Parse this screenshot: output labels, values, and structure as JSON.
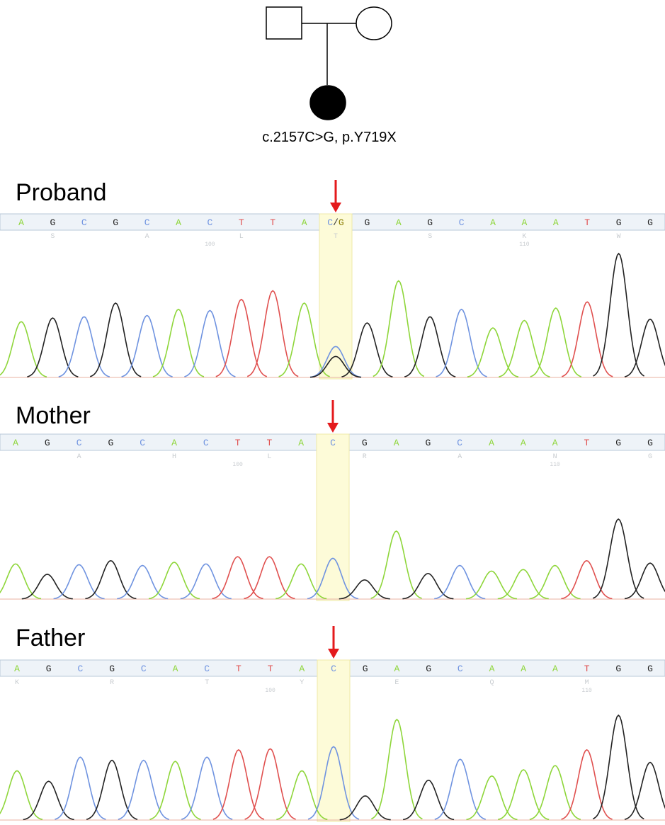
{
  "pedigree": {
    "label": "c.2157C>G, p.Y719X"
  },
  "base_colors": {
    "A": "#8ed63a",
    "C": "#6f93e0",
    "G": "#222222",
    "T": "#e0504f"
  },
  "panels": [
    {
      "title": "Proband",
      "highlight_index": 10,
      "bases": [
        "A",
        "G",
        "C",
        "G",
        "C",
        "A",
        "C",
        "T",
        "T",
        "A",
        "C/G",
        "G",
        "A",
        "G",
        "C",
        "A",
        "A",
        "A",
        "T",
        "G",
        "G"
      ],
      "amino_acids": [
        null,
        "S",
        null,
        null,
        "A",
        null,
        null,
        "L",
        null,
        null,
        "T",
        null,
        null,
        "S",
        null,
        null,
        "K",
        null,
        null,
        "W",
        null
      ],
      "positions": [
        null,
        null,
        null,
        null,
        null,
        null,
        100,
        null,
        null,
        null,
        null,
        null,
        null,
        null,
        null,
        null,
        110,
        null,
        null,
        null,
        null
      ],
      "peaks": [
        {
          "A": 0.45
        },
        {
          "G": 0.48
        },
        {
          "C": 0.49
        },
        {
          "G": 0.6
        },
        {
          "C": 0.5
        },
        {
          "A": 0.55
        },
        {
          "C": 0.54
        },
        {
          "T": 0.63
        },
        {
          "T": 0.7
        },
        {
          "A": 0.6
        },
        {
          "C": 0.25,
          "G": 0.17
        },
        {
          "G": 0.44
        },
        {
          "A": 0.78
        },
        {
          "G": 0.49
        },
        {
          "C": 0.55
        },
        {
          "A": 0.4
        },
        {
          "A": 0.46
        },
        {
          "A": 0.56
        },
        {
          "T": 0.61
        },
        {
          "G": 1.0
        },
        {
          "G": 0.47
        }
      ]
    },
    {
      "title": "Mother",
      "highlight_index": 10,
      "bases": [
        "A",
        "G",
        "C",
        "G",
        "C",
        "A",
        "C",
        "T",
        "T",
        "A",
        "C",
        "G",
        "A",
        "G",
        "C",
        "A",
        "A",
        "A",
        "T",
        "G",
        "G"
      ],
      "amino_acids": [
        null,
        null,
        "A",
        null,
        null,
        "H",
        null,
        null,
        "L",
        null,
        null,
        "R",
        null,
        null,
        "A",
        null,
        null,
        "N",
        null,
        null,
        "G"
      ],
      "positions": [
        null,
        null,
        null,
        null,
        null,
        null,
        null,
        100,
        null,
        null,
        null,
        null,
        null,
        null,
        null,
        null,
        null,
        110,
        null,
        null,
        null
      ],
      "peaks": [
        {
          "A": 0.44
        },
        {
          "G": 0.31
        },
        {
          "C": 0.43
        },
        {
          "G": 0.48
        },
        {
          "C": 0.42
        },
        {
          "A": 0.46
        },
        {
          "C": 0.44
        },
        {
          "T": 0.53
        },
        {
          "T": 0.53
        },
        {
          "A": 0.44
        },
        {
          "C": 0.51
        },
        {
          "G": 0.24
        },
        {
          "A": 0.85
        },
        {
          "G": 0.32
        },
        {
          "C": 0.42
        },
        {
          "A": 0.35
        },
        {
          "A": 0.37
        },
        {
          "A": 0.42
        },
        {
          "T": 0.48
        },
        {
          "G": 1.0
        },
        {
          "G": 0.45
        }
      ]
    },
    {
      "title": "Father",
      "highlight_index": 10,
      "bases": [
        "A",
        "G",
        "C",
        "G",
        "C",
        "A",
        "C",
        "T",
        "T",
        "A",
        "C",
        "G",
        "A",
        "G",
        "C",
        "A",
        "A",
        "A",
        "T",
        "G",
        "G"
      ],
      "amino_acids": [
        "K",
        null,
        null,
        "R",
        null,
        null,
        "T",
        null,
        null,
        "Y",
        null,
        null,
        "E",
        null,
        null,
        "Q",
        null,
        null,
        "M",
        null,
        null
      ],
      "positions": [
        null,
        null,
        null,
        null,
        null,
        null,
        null,
        null,
        100,
        null,
        null,
        null,
        null,
        null,
        null,
        null,
        null,
        null,
        110,
        null,
        null
      ],
      "peaks": [
        {
          "A": 0.47
        },
        {
          "G": 0.37
        },
        {
          "C": 0.6
        },
        {
          "G": 0.57
        },
        {
          "C": 0.57
        },
        {
          "A": 0.56
        },
        {
          "C": 0.6
        },
        {
          "T": 0.67
        },
        {
          "T": 0.68
        },
        {
          "A": 0.47
        },
        {
          "C": 0.7
        },
        {
          "G": 0.23
        },
        {
          "A": 0.96
        },
        {
          "G": 0.38
        },
        {
          "C": 0.58
        },
        {
          "A": 0.42
        },
        {
          "A": 0.48
        },
        {
          "A": 0.52
        },
        {
          "T": 0.67
        },
        {
          "G": 1.0
        },
        {
          "G": 0.55
        }
      ]
    }
  ]
}
